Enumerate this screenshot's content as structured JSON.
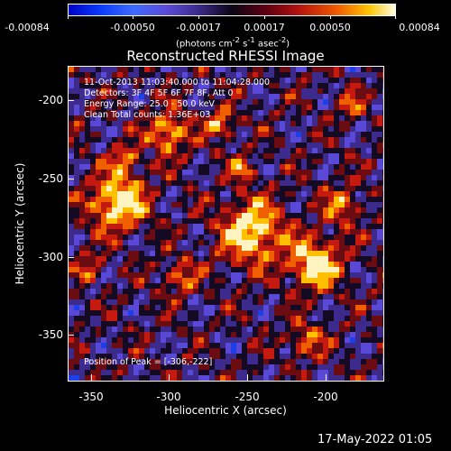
{
  "colorbar": {
    "ticks": [
      "-0.00084",
      "-0.00050",
      "-0.00017",
      "0.00017",
      "0.00050",
      "0.00084"
    ],
    "unit_text": "(photons cm",
    "unit_sup1": "-2",
    "unit_mid": " s",
    "unit_sup2": "-1",
    "unit_end": " asec",
    "unit_sup3": "-2",
    "unit_close": ")"
  },
  "title": "Reconstructed RHESSI Image",
  "info": {
    "time_range": "11-Oct-2013 11:03:40.000 to 11:04:28.000",
    "detectors": "Detectors: 3F 4F 5F 6F 7F 8F, Att 0",
    "energy": "Energy Range: 25.0 - 50.0 keV",
    "clean": "Clean     Total counts: 1.36E+03",
    "peak": "Position of Peak = [-306,-222]"
  },
  "axes": {
    "xlabel": "Heliocentric X (arcsec)",
    "ylabel": "Heliocentric Y (arcsec)",
    "x_range": [
      -365,
      -165
    ],
    "y_range": [
      -373,
      -173
    ],
    "x_ticks": [
      -350,
      -300,
      -250,
      -200
    ],
    "y_ticks": [
      -200,
      -250,
      -300,
      -350
    ]
  },
  "datestamp": "17-May-2022 01:05",
  "colors": {
    "background": "#000000",
    "foreground": "#ffffff"
  }
}
